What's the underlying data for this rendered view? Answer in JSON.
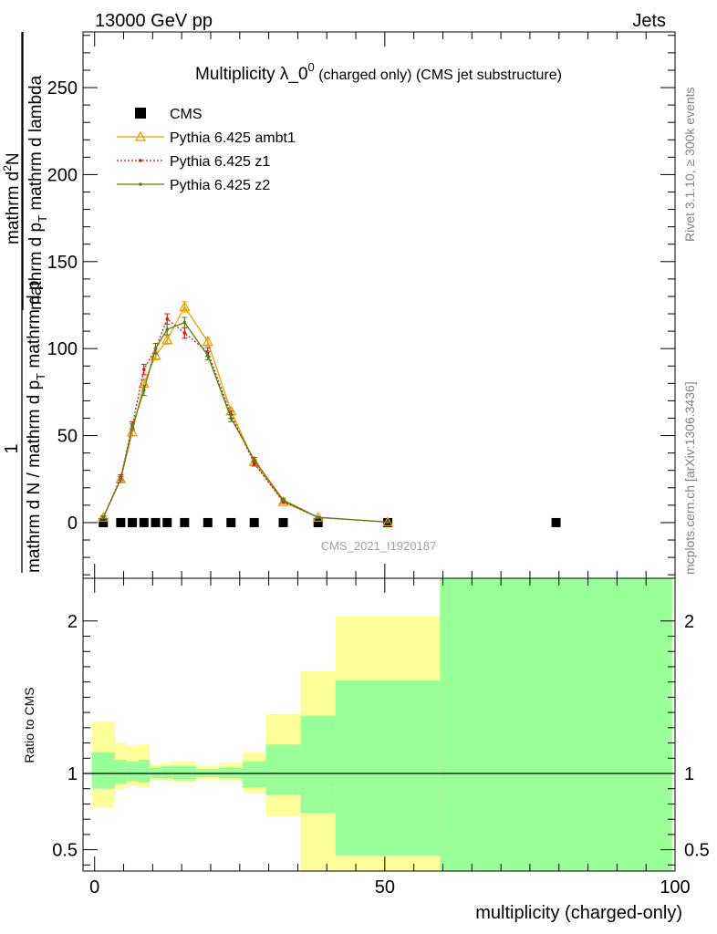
{
  "header": {
    "energy": "13000 GeV pp",
    "category": "Jets"
  },
  "side_labels": {
    "rivet": "Rivet 3.1.10, ≥ 300k events",
    "mcplots": "mcplots.cern.ch [arXiv:1306.3436]"
  },
  "chart_data": [
    {
      "type": "line",
      "title_main": "Multiplicity λ_0",
      "title_sup": "0",
      "title_rest": " (charged only) (CMS jet substructure)",
      "watermark": "CMS_2021_I1920187",
      "ylabel": {
        "one": "1",
        "inner_num": "mathrm d",
        "inner_sup": "2",
        "inner_num2": "N",
        "inner_den": "mathrm d p",
        "inner_den_sub": "T",
        "inner_den2": " mathrm d lambda",
        "outer_den": "mathrm d N / mathrm d p",
        "outer_den_sub": "T",
        "outer_den2": " mathrm d p"
      },
      "xlim": [
        -2,
        100
      ],
      "ylim": [
        -32,
        282
      ],
      "yticks": [
        0,
        50,
        100,
        150,
        200,
        250
      ],
      "legend_position": "top-left",
      "series": [
        {
          "name": "CMS",
          "color": "#000000",
          "marker": "square",
          "x": [
            1.5,
            4.5,
            6.5,
            8.5,
            10.5,
            12.5,
            15.5,
            19.5,
            23.5,
            27.5,
            32.5,
            38.5,
            50.5,
            79.5
          ],
          "y": [
            0,
            0,
            0,
            0,
            0,
            0,
            0,
            0,
            0,
            0,
            0,
            0,
            0,
            0
          ]
        },
        {
          "name": "Pythia 6.425 ambt1",
          "color": "#e8a000",
          "marker": "triangle",
          "x": [
            1.5,
            4.5,
            6.5,
            8.5,
            10.5,
            12.5,
            15.5,
            19.5,
            23.5,
            27.5,
            32.5,
            38.5,
            50.5
          ],
          "y": [
            3,
            25,
            52,
            80,
            96,
            105,
            124,
            104,
            64,
            35,
            12,
            3,
            0.3
          ],
          "err": [
            0.8,
            1.5,
            2,
            2.5,
            2.5,
            2.5,
            3,
            2.5,
            2,
            1.5,
            1,
            0.5,
            0.2
          ]
        },
        {
          "name": "Pythia 6.425 z1",
          "color": "#dd1111",
          "marker": "dot",
          "dashed": true,
          "x": [
            1.5,
            4.5,
            6.5,
            8.5,
            10.5,
            12.5,
            15.5,
            19.5,
            23.5,
            27.5,
            32.5,
            38.5,
            50.5
          ],
          "y": [
            3,
            26,
            56,
            88,
            100,
            117,
            109,
            98,
            62,
            34,
            12,
            3,
            0.3
          ],
          "err": [
            0.8,
            1.5,
            2,
            3,
            3,
            3,
            3,
            2.5,
            2,
            1.5,
            1,
            0.5,
            0.2
          ]
        },
        {
          "name": "Pythia 6.425 z2",
          "color": "#5a7d18",
          "marker": "dot",
          "x": [
            1.5,
            4.5,
            6.5,
            8.5,
            10.5,
            12.5,
            15.5,
            19.5,
            23.5,
            27.5,
            32.5,
            38.5,
            50.5
          ],
          "y": [
            3,
            25,
            55,
            76,
            100,
            111,
            115,
            96,
            60,
            36,
            13,
            3,
            0.3
          ],
          "err": [
            0.8,
            1.5,
            2,
            3,
            3,
            3,
            3,
            2.5,
            2,
            1.5,
            1,
            0.5,
            0.2
          ]
        }
      ]
    },
    {
      "type": "area",
      "ylabel": "Ratio to CMS",
      "xlabel": "multiplicity (charged-only)",
      "xlim": [
        -2,
        100
      ],
      "ylim": [
        0.36,
        2.28
      ],
      "yticks": [
        0.5,
        1,
        2
      ],
      "ytick_labels": [
        "0.5",
        "1",
        "2"
      ],
      "xticks": [
        0,
        50,
        100
      ],
      "xtick_labels": [
        "0",
        "50",
        "100"
      ],
      "reference": 1,
      "bands": [
        {
          "x0": -0.5,
          "x1": 3.5,
          "outer": [
            0.78,
            1.34
          ],
          "inner": [
            0.9,
            1.14
          ]
        },
        {
          "x0": 3.5,
          "x1": 5.5,
          "outer": [
            0.9,
            1.2
          ],
          "inner": [
            0.93,
            1.09
          ]
        },
        {
          "x0": 5.5,
          "x1": 7.5,
          "outer": [
            0.92,
            1.18
          ],
          "inner": [
            0.95,
            1.08
          ]
        },
        {
          "x0": 7.5,
          "x1": 9.5,
          "outer": [
            0.91,
            1.19
          ],
          "inner": [
            0.94,
            1.09
          ]
        },
        {
          "x0": 9.5,
          "x1": 11.5,
          "outer": [
            0.96,
            1.06
          ],
          "inner": [
            0.97,
            1.04
          ]
        },
        {
          "x0": 11.5,
          "x1": 13.5,
          "outer": [
            0.95,
            1.07
          ],
          "inner": [
            0.97,
            1.05
          ]
        },
        {
          "x0": 13.5,
          "x1": 17.5,
          "outer": [
            0.94,
            1.08
          ],
          "inner": [
            0.96,
            1.05
          ]
        },
        {
          "x0": 17.5,
          "x1": 21.5,
          "outer": [
            0.96,
            1.05
          ],
          "inner": [
            0.98,
            1.03
          ]
        },
        {
          "x0": 21.5,
          "x1": 25.5,
          "outer": [
            0.95,
            1.07
          ],
          "inner": [
            0.97,
            1.04
          ]
        },
        {
          "x0": 25.5,
          "x1": 29.5,
          "outer": [
            0.87,
            1.14
          ],
          "inner": [
            0.91,
            1.08
          ]
        },
        {
          "x0": 29.5,
          "x1": 35.5,
          "outer": [
            0.72,
            1.39
          ],
          "inner": [
            0.86,
            1.19
          ]
        },
        {
          "x0": 35.5,
          "x1": 41.5,
          "outer": [
            0.36,
            1.67
          ],
          "inner": [
            0.74,
            1.38
          ]
        },
        {
          "x0": 41.5,
          "x1": 59.5,
          "outer": [
            0.36,
            2.03
          ],
          "inner": [
            0.46,
            1.61
          ]
        },
        {
          "x0": 59.5,
          "x1": 99.5,
          "outer": [
            0.36,
            2.28
          ],
          "inner": [
            0.36,
            2.28
          ]
        }
      ]
    }
  ]
}
